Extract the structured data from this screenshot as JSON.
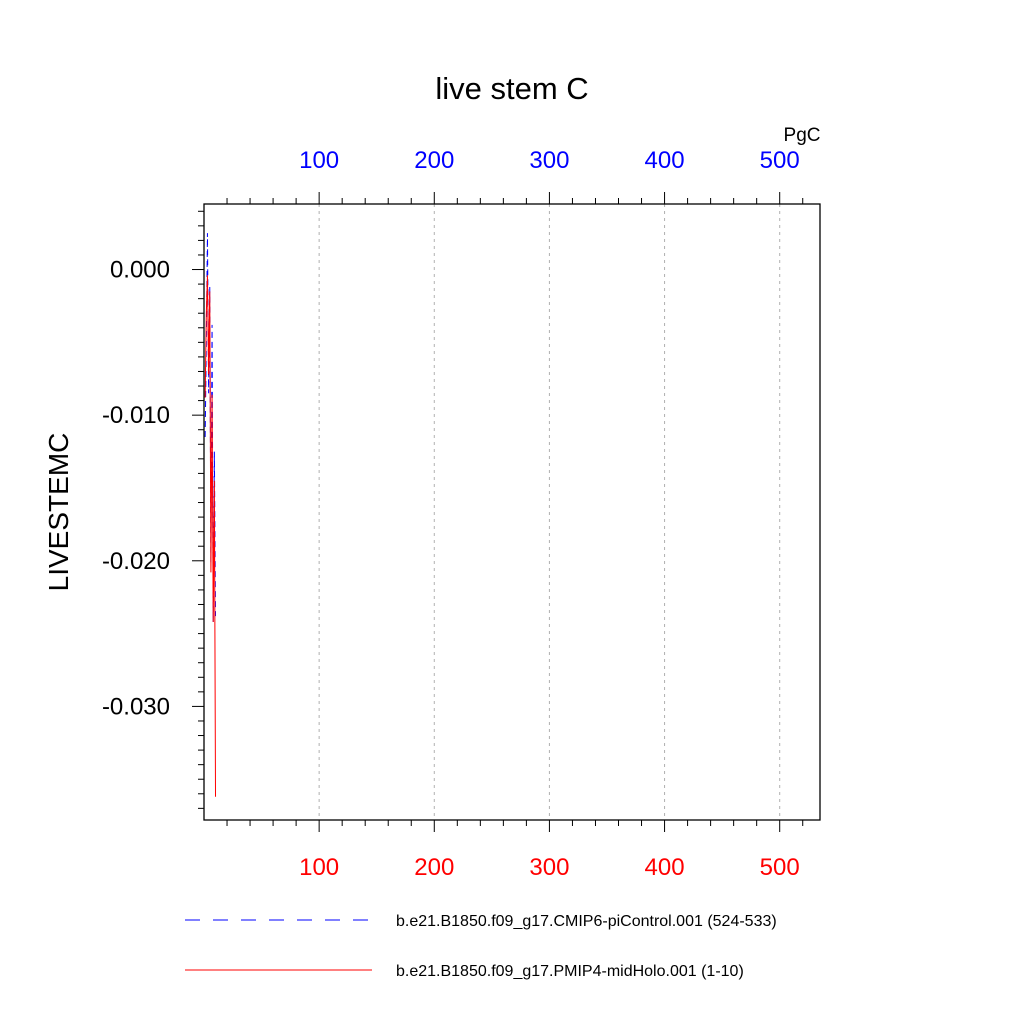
{
  "chart_data": {
    "type": "line",
    "title": "live stem C",
    "ylabel": "LIVESTEMC",
    "units": "PgC",
    "xlim": [
      0,
      535
    ],
    "ylim": [
      -0.0378,
      0.0045
    ],
    "grid_x": true,
    "x_ticks_bottom": [
      100,
      200,
      300,
      400,
      500
    ],
    "x_ticks_top": [
      100,
      200,
      300,
      400,
      500
    ],
    "y_ticks": [
      {
        "value": 0.0,
        "label": "0.000"
      },
      {
        "value": -0.01,
        "label": "-0.010"
      },
      {
        "value": -0.02,
        "label": "-0.020"
      },
      {
        "value": -0.03,
        "label": "-0.030"
      }
    ],
    "colors": {
      "bottom_axis": "#ff0000",
      "top_axis": "#0000ff",
      "grid": "#b0b0b0"
    },
    "series": [
      {
        "name": "b.e21.B1850.f09_g17.CMIP6-piControl.001 (524-533)",
        "color": "#0000ff",
        "dash": "dashed",
        "x": [
          1,
          2,
          3,
          4,
          5,
          6,
          7,
          8,
          9,
          10
        ],
        "y": [
          -0.0115,
          -0.0052,
          0.0025,
          -0.0085,
          -0.0012,
          -0.0201,
          -0.0038,
          -0.0242,
          -0.0125,
          -0.0238
        ]
      },
      {
        "name": "b.e21.B1850.f09_g17.PMIP4-midHolo.001 (1-10)",
        "color": "#ff0000",
        "dash": "solid",
        "x": [
          1,
          2,
          3,
          4,
          5,
          6,
          7,
          8,
          9,
          10
        ],
        "y": [
          -0.0088,
          -0.0031,
          -0.0004,
          -0.0072,
          -0.0015,
          -0.0208,
          -0.0086,
          -0.0242,
          -0.0145,
          -0.0362
        ]
      }
    ]
  }
}
